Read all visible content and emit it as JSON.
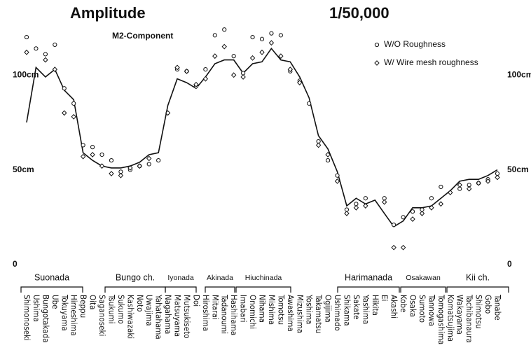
{
  "chart_data": {
    "type": "line",
    "title": "Amplitude",
    "subtitle": "M2-Component",
    "scale_label": "1/50,000",
    "ylim": [
      0,
      130
    ],
    "yticks": [
      0,
      {
        "value": 50,
        "label": "50cm"
      },
      {
        "value": 100,
        "label": "100cm"
      }
    ],
    "legend": "upper right",
    "categories": [
      "Shimonoseki",
      "Ushima",
      "Bungotakada",
      "Ube",
      "Tokuyama",
      "Hirneshima",
      "Beppu",
      "Oita",
      "Saganoseki",
      "Tsukumi",
      "Sukumo",
      "Kashiwazaki",
      "Noto",
      "Uwajima",
      "Yahatahama",
      "Nagahama",
      "Matsuyama",
      "Mutsukiseto",
      "Doi",
      "Hiroshima",
      "Mitarai",
      "Tadanoumi",
      "Hashihama",
      "Imabari",
      "Onomichi",
      "Nihama",
      "Mishima",
      "Tomotsu",
      "Awashima",
      "Mizushima",
      "Yoshima",
      "Takamatsu",
      "Ogijima",
      "Ushimado",
      "Shikama",
      "Sakate",
      "Yashima",
      "Hikita",
      "Ei",
      "Akashi",
      "Kobe",
      "Osaka",
      "Sumoto",
      "Tannowa",
      "Tomogashima",
      "Komatsujima",
      "Wakayama",
      "Tachibanaura",
      "Shimotsu",
      "Gobo",
      "Tanabe"
    ],
    "regions": [
      "Suonada",
      "Bungo ch.",
      "Iyonada",
      "Akinada",
      "Hiuchinada",
      "Harimanada",
      "Osakawan",
      "Kii ch."
    ],
    "series": [
      {
        "color": "#111111",
        "values": [
          75,
          104,
          99,
          103,
          92,
          87,
          59,
          55,
          52,
          51,
          51,
          52,
          54,
          58,
          59,
          84,
          98,
          96,
          93,
          99,
          106,
          108,
          108,
          101,
          106,
          107,
          114,
          108,
          107,
          99,
          88,
          68,
          61,
          49,
          31,
          35,
          32,
          34,
          27,
          20,
          23,
          30,
          30,
          31,
          35,
          39,
          44,
          45,
          45,
          47,
          50
        ]
      },
      {
        "name": "W/O Roughness",
        "marker": "circle",
        "color": "#111111",
        "values": [
          120,
          114,
          111,
          116,
          93,
          85,
          63,
          62,
          58,
          55,
          49,
          50,
          52,
          53,
          55,
          null,
          103,
          102,
          94,
          103,
          121,
          124,
          110,
          101,
          120,
          119,
          122,
          121,
          102,
          97,
          85,
          65,
          55,
          47,
          29,
          32,
          35,
          null,
          35,
          21,
          25,
          28,
          29,
          35,
          41,
          null,
          40,
          42,
          43,
          45,
          48
        ]
      },
      {
        "name": "W/ Wire mesh roughness",
        "marker": "diamond",
        "color": "#111111",
        "values": [
          112,
          null,
          108,
          103,
          80,
          78,
          57,
          58,
          52,
          48,
          47,
          51,
          52,
          56,
          null,
          80,
          104,
          102,
          95,
          98,
          110,
          115,
          100,
          99,
          109,
          112,
          117,
          110,
          103,
          96,
          null,
          63,
          58,
          44,
          27,
          30,
          31,
          null,
          33,
          9,
          9,
          24,
          27,
          30,
          32,
          38,
          42,
          40,
          43,
          44,
          46
        ]
      }
    ]
  }
}
